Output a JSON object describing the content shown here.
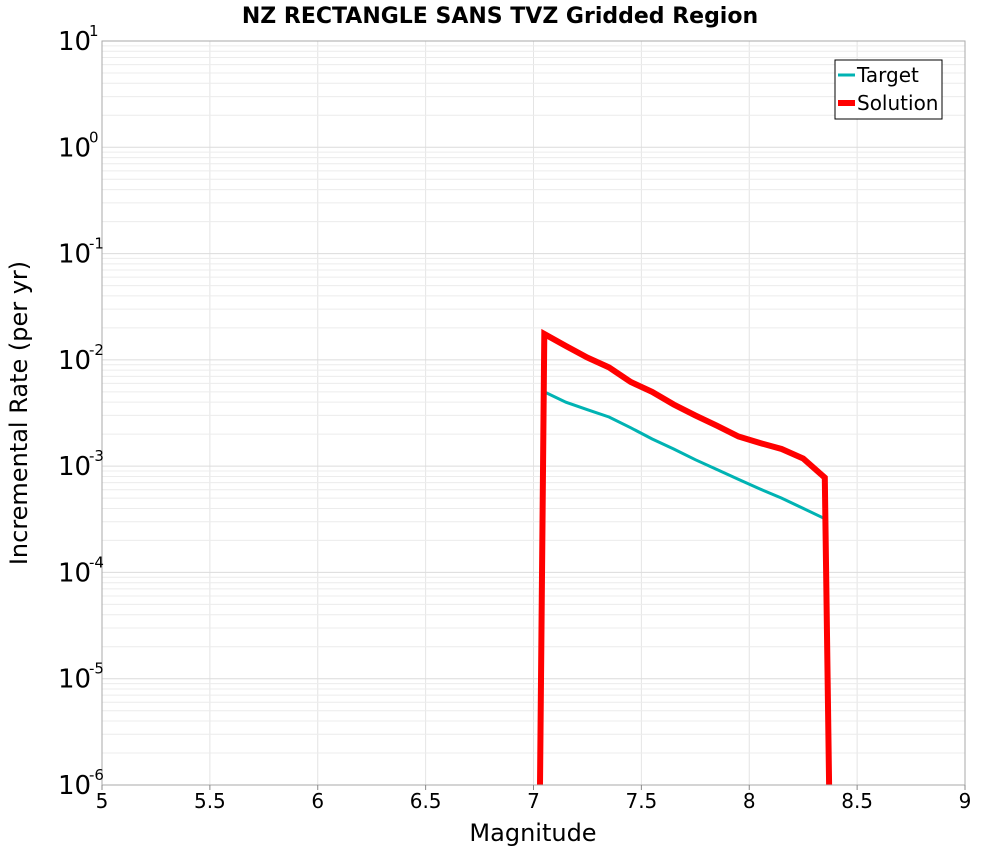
{
  "chart_data": {
    "type": "line",
    "title": "NZ RECTANGLE SANS TVZ Gridded Region",
    "xlabel": "Magnitude",
    "ylabel": "Incremental Rate (per yr)",
    "xlim": [
      5,
      9
    ],
    "ylim": [
      1e-06,
      10
    ],
    "yscale": "log",
    "grid": true,
    "legend_position": "top-right",
    "x_ticks": [
      "5",
      "5.5",
      "6",
      "6.5",
      "7",
      "7.5",
      "8",
      "8.5",
      "9"
    ],
    "y_ticks": [
      {
        "base": "10",
        "exp": "1"
      },
      {
        "base": "10",
        "exp": "0"
      },
      {
        "base": "10",
        "exp": "-1"
      },
      {
        "base": "10",
        "exp": "-2"
      },
      {
        "base": "10",
        "exp": "-3"
      },
      {
        "base": "10",
        "exp": "-4"
      },
      {
        "base": "10",
        "exp": "-5"
      },
      {
        "base": "10",
        "exp": "-6"
      }
    ],
    "series": [
      {
        "name": "Target",
        "color": "#00b3b3",
        "width": 3,
        "x": [
          7.05,
          7.15,
          7.25,
          7.35,
          7.45,
          7.55,
          7.65,
          7.75,
          7.85,
          7.95,
          8.05,
          8.15,
          8.25,
          8.35
        ],
        "y": [
          0.005,
          0.004,
          0.0034,
          0.0029,
          0.0023,
          0.0018,
          0.00145,
          0.00115,
          0.00093,
          0.00075,
          0.00061,
          0.0005,
          0.0004,
          0.00032
        ]
      },
      {
        "name": "Solution",
        "color": "#ff0000",
        "width": 6,
        "x": [
          7.03,
          7.05,
          7.15,
          7.25,
          7.35,
          7.45,
          7.55,
          7.65,
          7.75,
          7.85,
          7.95,
          8.05,
          8.15,
          8.25,
          8.35,
          8.37
        ],
        "y": [
          1e-06,
          0.0175,
          0.0135,
          0.0105,
          0.0085,
          0.0062,
          0.005,
          0.0038,
          0.003,
          0.0024,
          0.0019,
          0.00165,
          0.00145,
          0.00118,
          0.00078,
          1e-06
        ]
      }
    ]
  }
}
